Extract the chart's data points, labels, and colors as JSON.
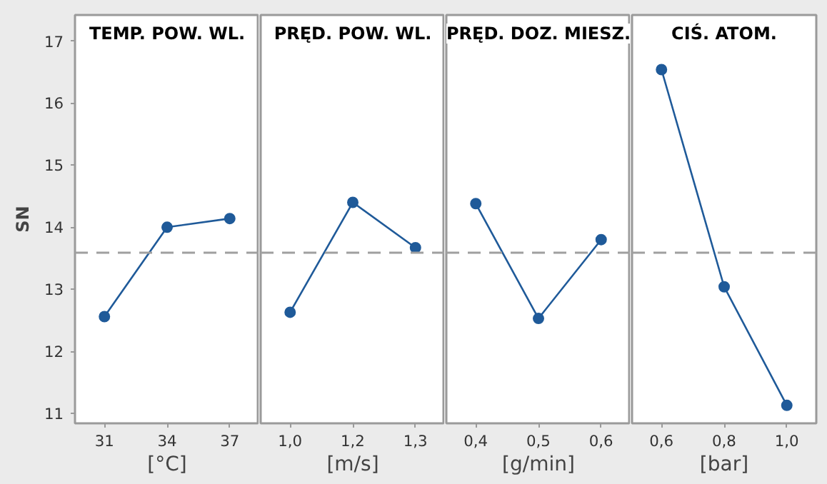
{
  "chart_data": [
    {
      "type": "line",
      "title": "TEMP. POW. WL.",
      "ylabel": "SN",
      "xlabel": "[°C]",
      "categories": [
        "31",
        "34",
        "37"
      ],
      "series": [
        {
          "color": "#1f5a99",
          "values": [
            12.56,
            14.0,
            14.14
          ]
        }
      ],
      "ylim": [
        10.84,
        17.42
      ],
      "yticks": [
        11,
        12,
        13,
        14,
        15,
        16,
        17
      ],
      "marker": "circle",
      "line_style": "solid",
      "ref_lines": [
        {
          "axis": "y",
          "value": 13.59,
          "color": "#a0a0a0",
          "line_style": "dashed"
        }
      ]
    },
    {
      "type": "line",
      "title": "PRĘD. POW. WL.",
      "xlabel": "[m/s]",
      "categories": [
        "1,0",
        "1,2",
        "1,3"
      ],
      "series": [
        {
          "color": "#1f5a99",
          "values": [
            12.63,
            14.4,
            13.67
          ]
        }
      ],
      "ylim": [
        10.84,
        17.42
      ],
      "tick_labels": "x",
      "marker": "circle",
      "line_style": "solid",
      "ref_lines": [
        {
          "axis": "y",
          "value": 13.59,
          "color": "#a0a0a0",
          "line_style": "dashed"
        }
      ]
    },
    {
      "type": "line",
      "title": "PRĘD. DOZ. MIESZ.",
      "xlabel": "[g/min]",
      "categories": [
        "0,4",
        "0,5",
        "0,6"
      ],
      "series": [
        {
          "color": "#1f5a99",
          "values": [
            14.38,
            12.53,
            13.8
          ]
        }
      ],
      "ylim": [
        10.84,
        17.42
      ],
      "tick_labels": "x",
      "marker": "circle",
      "line_style": "solid",
      "ref_lines": [
        {
          "axis": "y",
          "value": 13.59,
          "color": "#a0a0a0",
          "line_style": "dashed"
        }
      ]
    },
    {
      "type": "line",
      "title": "CIŚ. ATOM.",
      "xlabel": "[bar]",
      "categories": [
        "0,6",
        "0,8",
        "1,0"
      ],
      "series": [
        {
          "color": "#1f5a99",
          "values": [
            16.54,
            13.04,
            11.13
          ]
        }
      ],
      "ylim": [
        10.84,
        17.42
      ],
      "tick_labels": "x",
      "marker": "circle",
      "line_style": "solid",
      "ref_lines": [
        {
          "axis": "y",
          "value": 13.59,
          "color": "#a0a0a0",
          "line_style": "dashed"
        }
      ]
    }
  ]
}
